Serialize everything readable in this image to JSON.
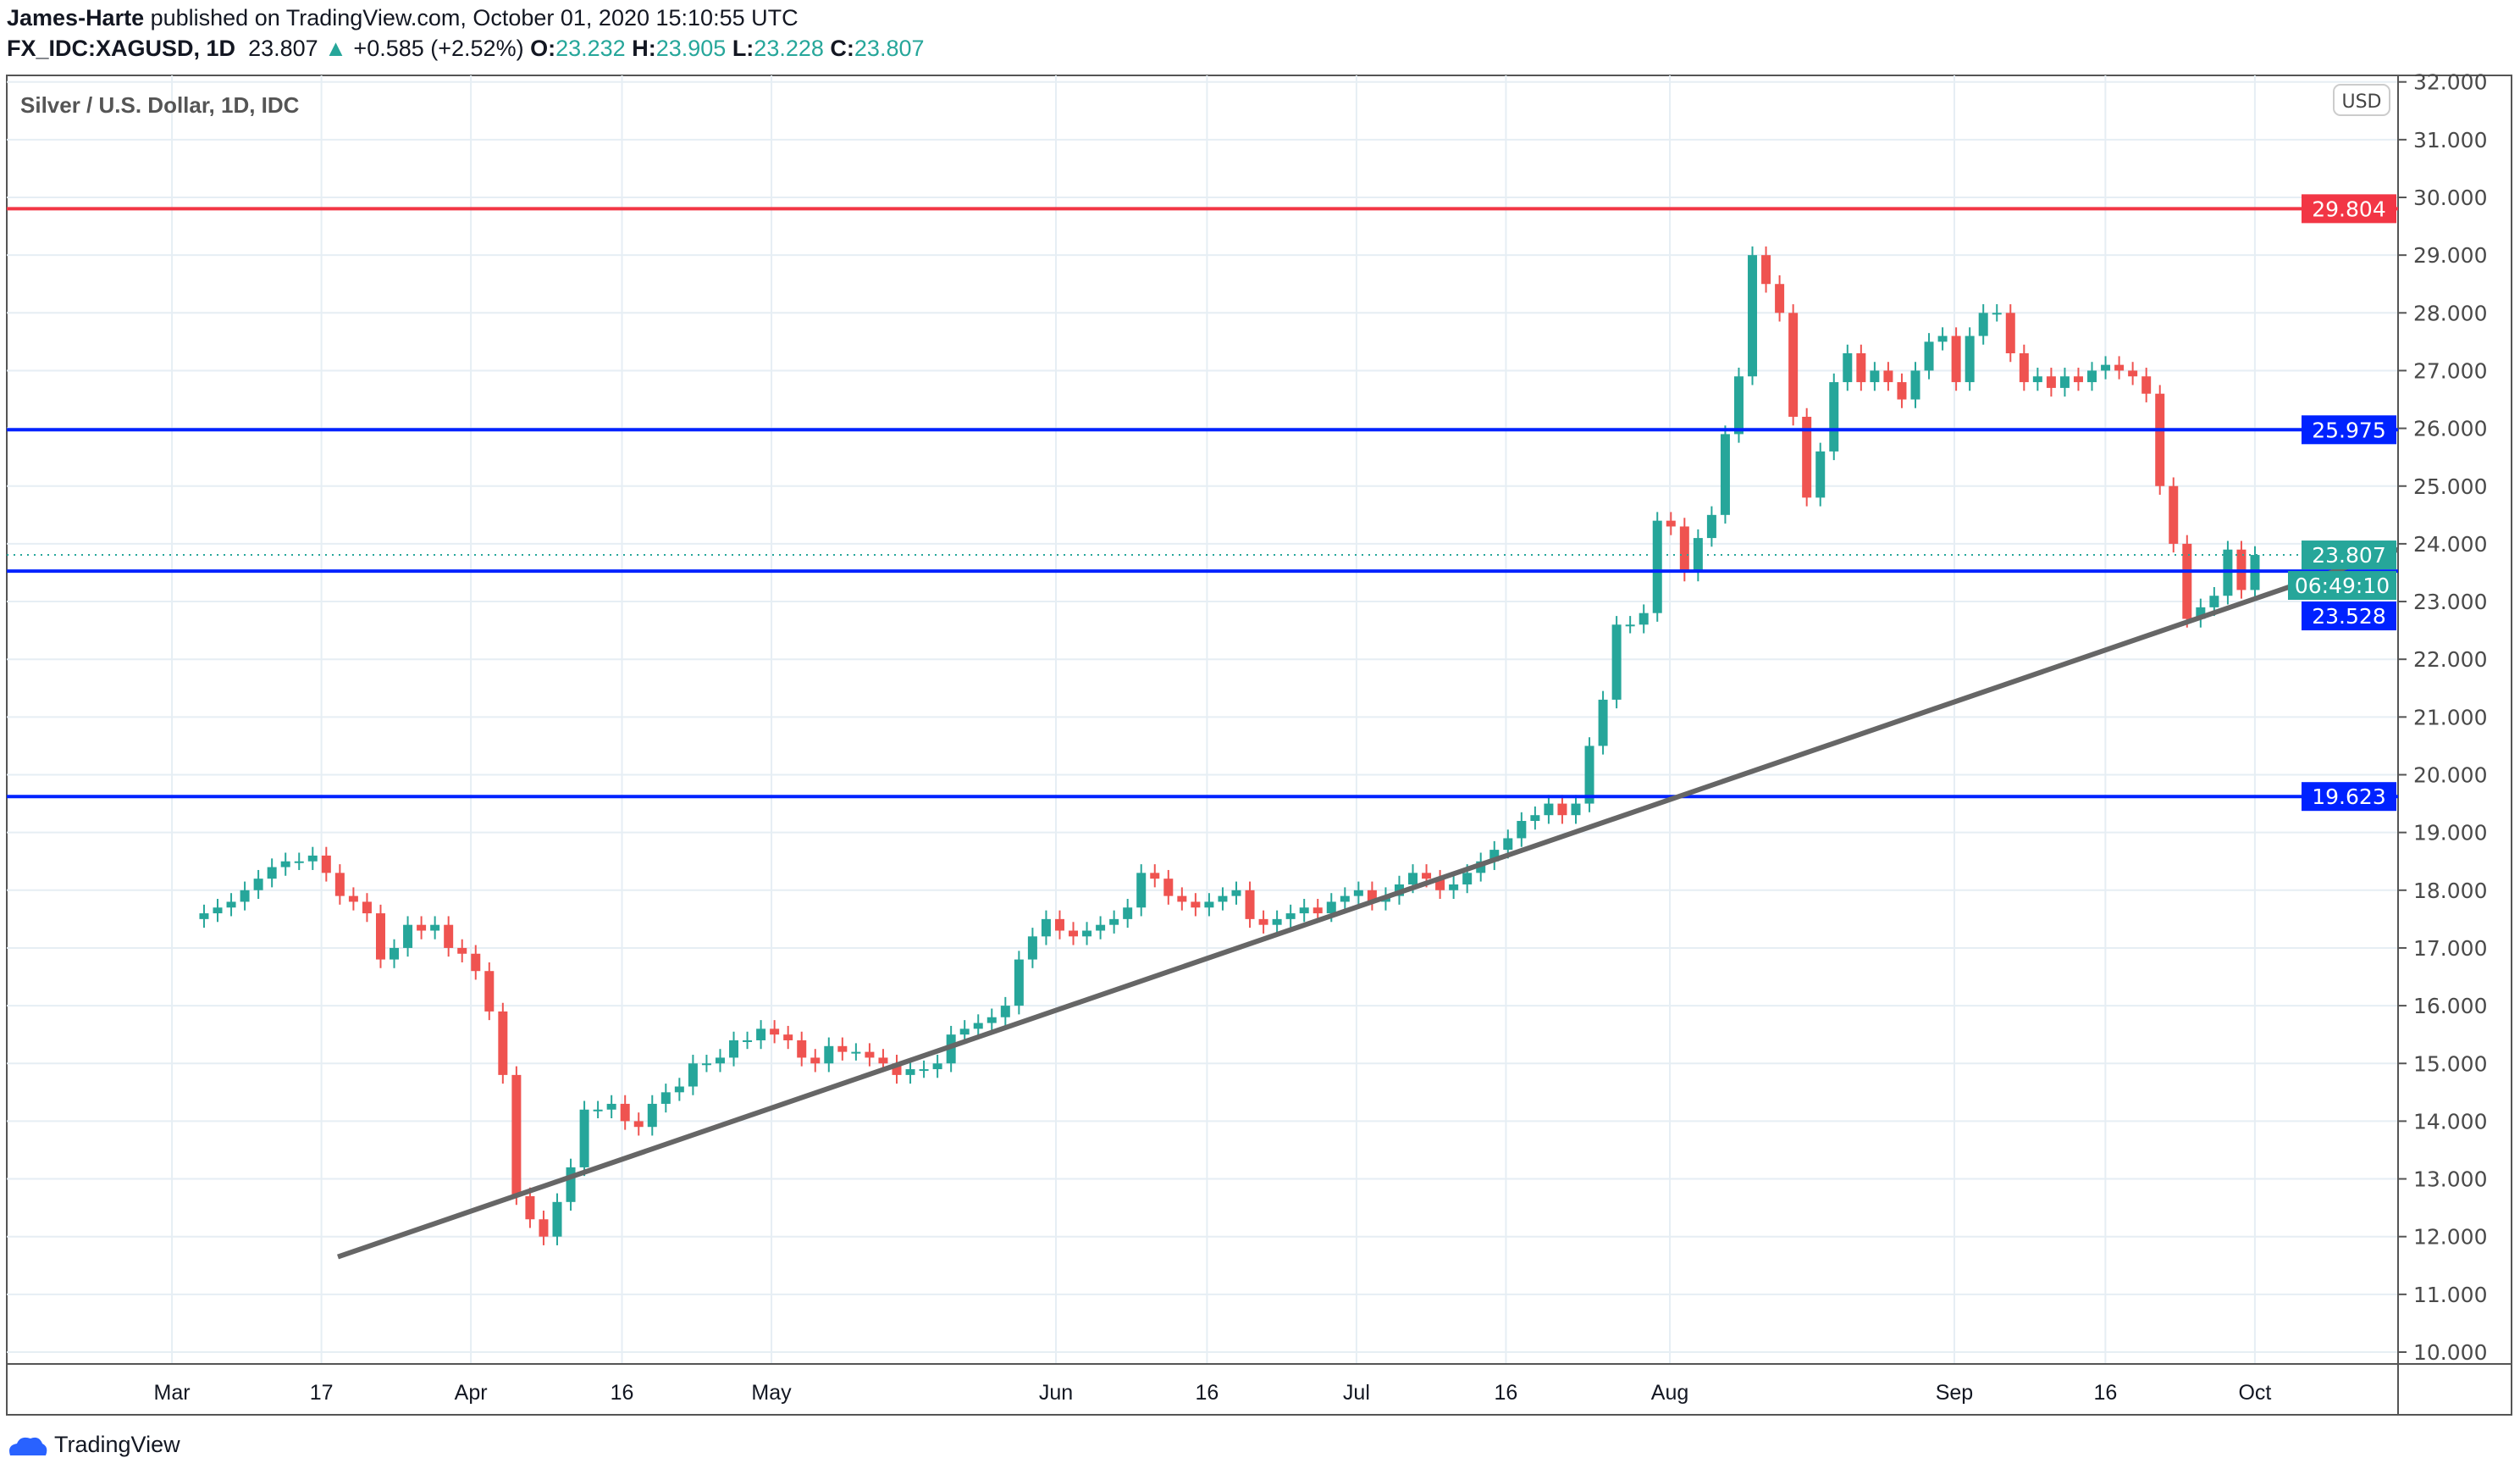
{
  "header": {
    "author": "James-Harte",
    "published": "published on TradingView.com, October 01, 2020 15:10:55 UTC",
    "symbol": "FX_IDC:XAGUSD, 1D",
    "last": "23.807",
    "change": "+0.585 (+2.52%)",
    "o_label": "O:",
    "o": "23.232",
    "h_label": "H:",
    "h": "23.905",
    "l_label": "L:",
    "l": "23.228",
    "c_label": "C:",
    "c": "23.807"
  },
  "footer": {
    "brand": "TradingView"
  },
  "chart_data": {
    "type": "candlestick",
    "title": "Silver / U.S. Dollar, 1D, IDC",
    "currency": "USD",
    "ylim": [
      10,
      32
    ],
    "yticks": [
      10,
      11,
      12,
      13,
      14,
      15,
      16,
      17,
      18,
      19,
      20,
      21,
      22,
      23,
      24,
      25,
      26,
      27,
      28,
      29,
      30,
      31,
      32
    ],
    "xticks": [
      "Mar",
      "17",
      "Apr",
      "16",
      "May",
      "Jun",
      "16",
      "Jul",
      "16",
      "Aug",
      "Sep",
      "16",
      "Oct"
    ],
    "grid": true,
    "colors": {
      "up": "#26a69a",
      "down": "#ef5350",
      "resistance": "#f23645",
      "support": "#0022ff",
      "trendline": "#666666"
    },
    "last_date": "2020-10-01",
    "close": [
      17.6,
      17.7,
      17.8,
      18.0,
      18.2,
      18.4,
      18.5,
      18.5,
      18.6,
      18.3,
      17.9,
      17.8,
      17.6,
      16.8,
      17.0,
      17.4,
      17.3,
      17.4,
      17.0,
      16.9,
      16.6,
      15.9,
      14.8,
      12.7,
      12.3,
      12.0,
      12.6,
      13.2,
      14.2,
      14.2,
      14.3,
      14.0,
      13.9,
      14.3,
      14.5,
      14.6,
      15.0,
      15.0,
      15.1,
      15.4,
      15.4,
      15.6,
      15.5,
      15.4,
      15.1,
      15.0,
      15.3,
      15.2,
      15.2,
      15.1,
      15.0,
      14.8,
      14.9,
      14.9,
      15.0,
      15.5,
      15.6,
      15.7,
      15.8,
      16.0,
      16.8,
      17.2,
      17.5,
      17.3,
      17.2,
      17.3,
      17.4,
      17.5,
      17.7,
      18.3,
      18.2,
      17.9,
      17.8,
      17.7,
      17.8,
      17.9,
      18.0,
      17.5,
      17.4,
      17.5,
      17.6,
      17.7,
      17.6,
      17.8,
      17.9,
      18.0,
      17.8,
      17.9,
      18.1,
      18.3,
      18.2,
      18.0,
      18.1,
      18.3,
      18.5,
      18.7,
      18.9,
      19.2,
      19.3,
      19.5,
      19.3,
      19.5,
      20.5,
      21.3,
      22.6,
      22.6,
      22.8,
      24.4,
      24.3,
      23.5,
      24.1,
      24.5,
      25.9,
      26.9,
      29.0,
      28.5,
      28.0,
      26.2,
      24.8,
      25.6,
      26.8,
      27.3,
      26.8,
      27.0,
      26.8,
      26.5,
      27.0,
      27.5,
      27.6,
      26.8,
      27.6,
      28.0,
      28.0,
      27.3,
      26.8,
      26.9,
      26.7,
      26.9,
      26.8,
      27.0,
      27.1,
      27.0,
      26.9,
      26.6,
      25.0,
      24.0,
      22.7,
      22.9,
      23.1,
      23.9,
      23.2,
      23.807
    ],
    "levels": [
      {
        "price": 29.804,
        "label": "29.804",
        "kind": "resistance"
      },
      {
        "price": 25.975,
        "label": "25.975",
        "kind": "support"
      },
      {
        "price": 23.528,
        "label": "23.528",
        "kind": "support"
      },
      {
        "price": 19.623,
        "label": "19.623",
        "kind": "support"
      }
    ],
    "current": {
      "price": 23.807,
      "label": "23.807",
      "countdown": "06:49:10"
    },
    "trendline": {
      "start_price": 11.65,
      "end_price": 23.9
    }
  }
}
